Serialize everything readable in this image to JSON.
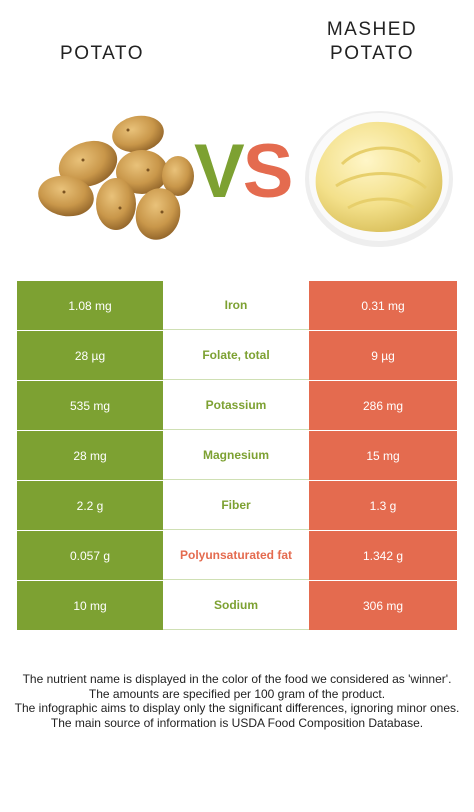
{
  "header": {
    "left_title": "POTATO",
    "right_title_line1": "MASHED",
    "right_title_line2": "POTATO",
    "vs_v": "V",
    "vs_s": "S"
  },
  "colors": {
    "left_food": "#7da132",
    "right_food": "#e46b4f"
  },
  "rows": [
    {
      "left": "1.08 mg",
      "nutrient": "Iron",
      "right": "0.31 mg",
      "winner": "left"
    },
    {
      "left": "28 µg",
      "nutrient": "Folate, total",
      "right": "9 µg",
      "winner": "left"
    },
    {
      "left": "535 mg",
      "nutrient": "Potassium",
      "right": "286 mg",
      "winner": "left"
    },
    {
      "left": "28 mg",
      "nutrient": "Magnesium",
      "right": "15 mg",
      "winner": "left"
    },
    {
      "left": "2.2 g",
      "nutrient": "Fiber",
      "right": "1.3 g",
      "winner": "left"
    },
    {
      "left": "0.057 g",
      "nutrient": "Polyunsaturated fat",
      "right": "1.342 g",
      "winner": "right"
    },
    {
      "left": "10 mg",
      "nutrient": "Sodium",
      "right": "306 mg",
      "winner": "left"
    }
  ],
  "notes": [
    "The nutrient name is displayed in the color of the food we considered as 'winner'.",
    "The amounts are specified per 100 gram of the product.",
    "The infographic aims to display only the significant differences, ignoring minor ones.",
    "The main source of information is USDA Food Composition Database."
  ]
}
